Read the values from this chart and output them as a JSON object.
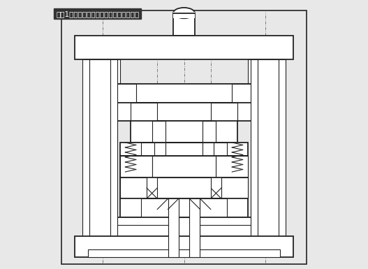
{
  "title": "【図1】一般的な可動ストリッパ構造金型",
  "title_bg": "#333333",
  "title_fg": "#ffffff",
  "bg_color": "#e8e8e8",
  "draw_color": "#222222",
  "lw": 0.8,
  "lw2": 1.3,
  "fig_w": 5.27,
  "fig_h": 3.85
}
